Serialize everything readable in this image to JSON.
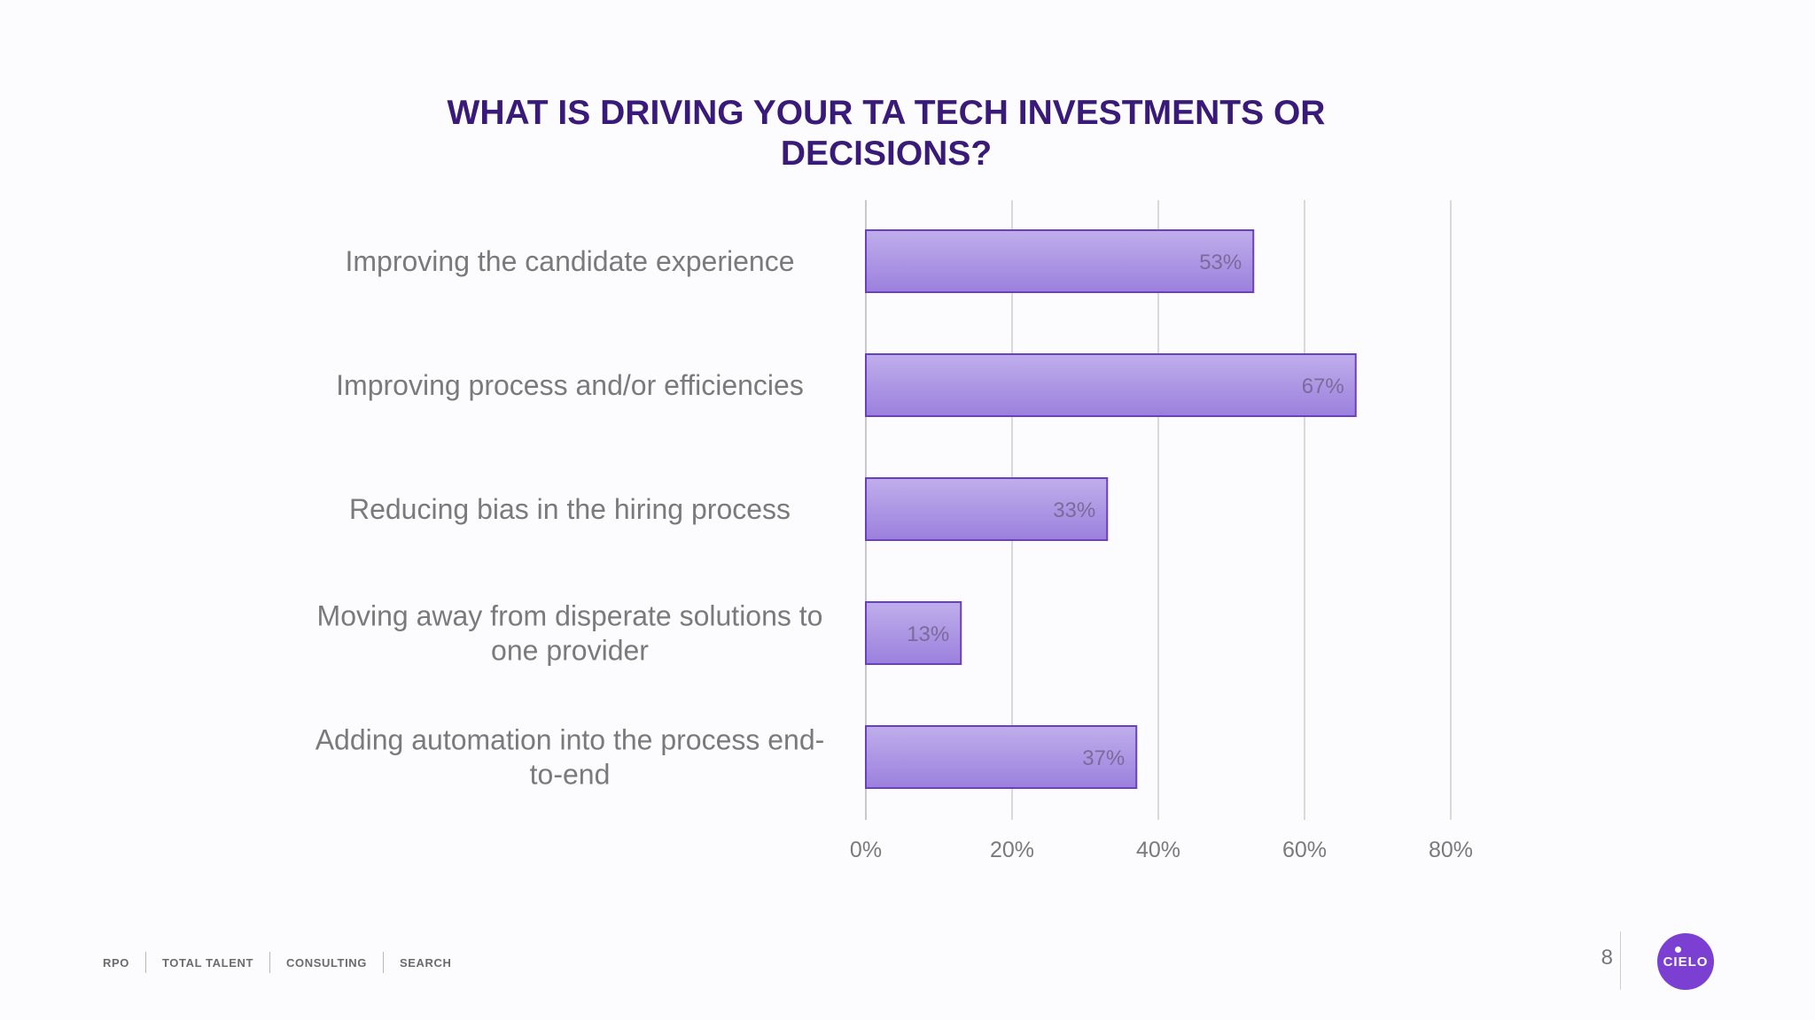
{
  "chart_data": {
    "type": "bar",
    "orientation": "horizontal",
    "title": "WHAT IS DRIVING YOUR TA TECH INVESTMENTS OR DECISIONS?",
    "categories": [
      "Improving the candidate experience",
      "Improving process and/or efficiencies",
      "Reducing bias in the hiring process",
      "Moving away from disperate solutions to one provider",
      "Adding automation into the process end-to-end"
    ],
    "category_lines": [
      [
        "Improving the candidate experience"
      ],
      [
        "Improving process and/or efficiencies"
      ],
      [
        "Reducing bias in the hiring process"
      ],
      [
        "Moving away from disperate solutions to",
        "one provider"
      ],
      [
        "Adding automation into the process end-",
        "to-end"
      ]
    ],
    "values": [
      53,
      67,
      33,
      13,
      37
    ],
    "value_labels": [
      "53%",
      "67%",
      "33%",
      "13%",
      "37%"
    ],
    "xlim": [
      0,
      80
    ],
    "x_ticks": [
      0,
      20,
      40,
      60,
      80
    ],
    "x_tick_labels": [
      "0%",
      "20%",
      "40%",
      "60%",
      "80%"
    ],
    "grid": true,
    "legend": "none",
    "bar_color": "#a78fe0",
    "bar_border_color": "#6a3fc0"
  },
  "footer": {
    "items": [
      "RPO",
      "TOTAL TALENT",
      "CONSULTING",
      "SEARCH"
    ]
  },
  "page_number": "8",
  "logo": {
    "text": "CIELO",
    "color": "#7b3fd1"
  }
}
